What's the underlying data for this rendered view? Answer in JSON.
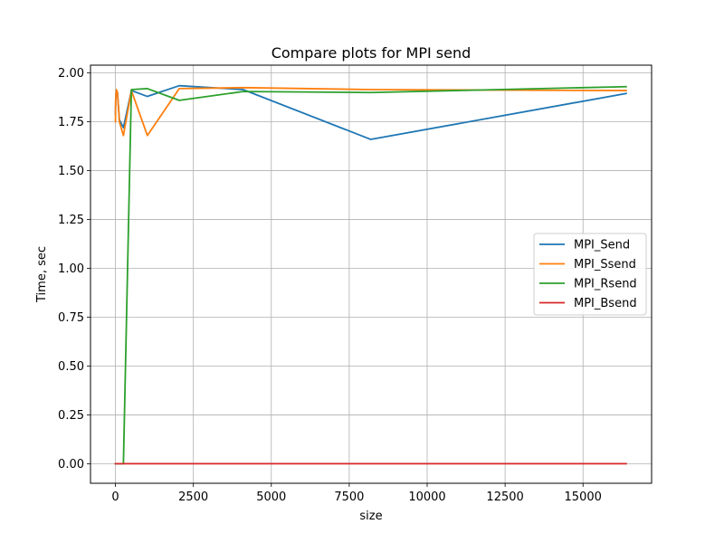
{
  "chart_data": {
    "type": "line",
    "title": "Compare plots for MPI send",
    "xlabel": "size",
    "ylabel": "Time, sec",
    "xlim": [
      -800,
      17200
    ],
    "ylim": [
      -0.1,
      2.04
    ],
    "xticks": [
      0,
      2500,
      5000,
      7500,
      10000,
      12500,
      15000
    ],
    "xtick_labels": [
      "0",
      "2500",
      "5000",
      "7500",
      "10000",
      "12500",
      "15000"
    ],
    "yticks": [
      0.0,
      0.25,
      0.5,
      0.75,
      1.0,
      1.25,
      1.5,
      1.75,
      2.0
    ],
    "ytick_labels": [
      "0.00",
      "0.25",
      "0.50",
      "0.75",
      "1.00",
      "1.25",
      "1.50",
      "1.75",
      "2.00"
    ],
    "grid": true,
    "legend_position": "center-right",
    "series": [
      {
        "name": "MPI_Send",
        "color": "#1f77b4",
        "x": [
          1,
          2,
          4,
          8,
          16,
          32,
          64,
          128,
          256,
          512,
          1024,
          2048,
          4096,
          8192,
          16384
        ],
        "y": [
          1.79,
          1.8,
          1.82,
          1.86,
          1.89,
          1.91,
          1.9,
          1.76,
          1.72,
          1.91,
          1.88,
          1.935,
          1.915,
          1.66,
          1.895
        ]
      },
      {
        "name": "MPI_Ssend",
        "color": "#ff7f0e",
        "x": [
          1,
          2,
          4,
          8,
          16,
          32,
          64,
          128,
          256,
          512,
          1024,
          2048,
          4096,
          8192,
          16384
        ],
        "y": [
          1.75,
          1.78,
          1.82,
          1.86,
          1.89,
          1.915,
          1.9,
          1.75,
          1.68,
          1.91,
          1.68,
          1.92,
          1.925,
          1.915,
          1.91
        ]
      },
      {
        "name": "MPI_Rsend",
        "color": "#2ca02c",
        "x": [
          1,
          2,
          4,
          8,
          16,
          32,
          64,
          128,
          256,
          512,
          1024,
          2048,
          4096,
          8192,
          16384
        ],
        "y": [
          0,
          0,
          0,
          0,
          0,
          0,
          0,
          0,
          0,
          1.915,
          1.92,
          1.86,
          1.905,
          1.9,
          1.93
        ]
      },
      {
        "name": "MPI_Bsend",
        "color": "#d62728",
        "x": [
          1,
          2,
          4,
          8,
          16,
          32,
          64,
          128,
          256,
          512,
          1024,
          2048,
          4096,
          8192,
          16384
        ],
        "y": [
          0,
          0,
          0,
          0,
          0,
          0,
          0,
          0,
          0,
          0,
          0,
          0,
          0,
          0,
          0
        ]
      }
    ]
  }
}
